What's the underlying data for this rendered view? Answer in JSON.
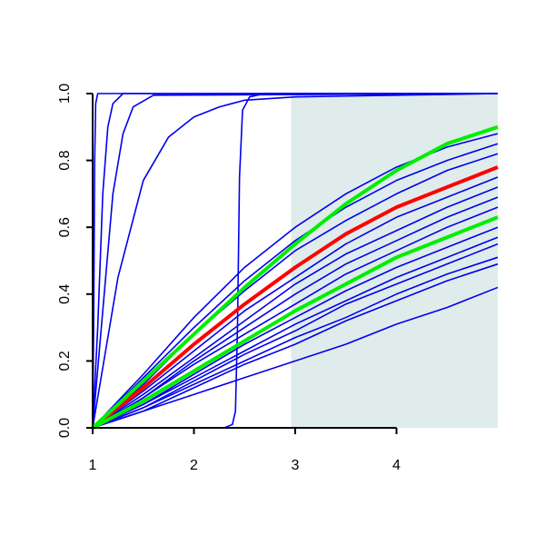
{
  "chart_data": {
    "type": "line",
    "x": [
      1,
      1.5,
      2,
      2.5,
      3,
      3.5,
      4,
      4.5,
      5
    ],
    "xlim": [
      1,
      5
    ],
    "ylim": [
      0,
      1
    ],
    "xticks": [
      1,
      2,
      3,
      4
    ],
    "yticks": [
      {
        "value": 0,
        "label": "0.0"
      },
      {
        "value": 0.2,
        "label": "0.2"
      },
      {
        "value": 0.4,
        "label": "0.4"
      },
      {
        "value": 0.6,
        "label": "0.6"
      },
      {
        "value": 0.8,
        "label": "0.8"
      },
      {
        "value": 1,
        "label": "1.0"
      }
    ],
    "shade_x": [
      2.96,
      5
    ],
    "shade_color": "#dfeceb",
    "series": [
      {
        "color": "#0000ee",
        "x": [
          1,
          1.01,
          1.02,
          1.03,
          1.05,
          5
        ],
        "values": [
          0,
          0.3,
          0.8,
          0.97,
          1,
          1
        ]
      },
      {
        "color": "#0000ee",
        "x": [
          1,
          1.05,
          1.1,
          1.15,
          1.2,
          1.3,
          5
        ],
        "values": [
          0,
          0.3,
          0.7,
          0.9,
          0.97,
          1,
          1
        ]
      },
      {
        "color": "#0000ee",
        "x": [
          1,
          1.1,
          1.2,
          1.3,
          1.4,
          1.6,
          5
        ],
        "values": [
          0,
          0.35,
          0.7,
          0.88,
          0.96,
          0.995,
          1
        ]
      },
      {
        "color": "#0000ee",
        "x": [
          1,
          1.25,
          1.5,
          1.75,
          2,
          2.25,
          2.5,
          3,
          5
        ],
        "values": [
          0,
          0.45,
          0.74,
          0.87,
          0.93,
          0.96,
          0.98,
          0.99,
          1
        ]
      },
      {
        "color": "#0000ee",
        "x": [
          1,
          2.3,
          2.38,
          2.41,
          2.43,
          2.45,
          2.48,
          2.55,
          2.7,
          5
        ],
        "values": [
          0,
          0,
          0.01,
          0.05,
          0.3,
          0.75,
          0.95,
          0.99,
          1,
          1
        ]
      },
      {
        "color": "#0000ee",
        "values": [
          0,
          0.16,
          0.33,
          0.48,
          0.6,
          0.7,
          0.78,
          0.84,
          0.88
        ]
      },
      {
        "color": "#0000ee",
        "values": [
          0,
          0.15,
          0.3,
          0.44,
          0.56,
          0.66,
          0.74,
          0.8,
          0.85
        ]
      },
      {
        "color": "#0000ee",
        "values": [
          0,
          0.13,
          0.28,
          0.41,
          0.53,
          0.62,
          0.7,
          0.77,
          0.82
        ]
      },
      {
        "color": "#0000ee",
        "values": [
          0,
          0.11,
          0.23,
          0.35,
          0.45,
          0.55,
          0.63,
          0.69,
          0.75
        ]
      },
      {
        "color": "#0000ee",
        "values": [
          0,
          0.1,
          0.21,
          0.32,
          0.43,
          0.52,
          0.59,
          0.66,
          0.72
        ]
      },
      {
        "color": "#0000ee",
        "values": [
          0,
          0.09,
          0.2,
          0.3,
          0.4,
          0.49,
          0.56,
          0.63,
          0.69
        ]
      },
      {
        "color": "#0000ee",
        "values": [
          0,
          0.09,
          0.19,
          0.28,
          0.37,
          0.46,
          0.53,
          0.6,
          0.66
        ]
      },
      {
        "color": "#0000ee",
        "values": [
          0,
          0.07,
          0.16,
          0.25,
          0.33,
          0.41,
          0.48,
          0.54,
          0.6
        ]
      },
      {
        "color": "#0000ee",
        "values": [
          0,
          0.07,
          0.15,
          0.23,
          0.31,
          0.38,
          0.45,
          0.51,
          0.57
        ]
      },
      {
        "color": "#0000ee",
        "values": [
          0,
          0.06,
          0.14,
          0.22,
          0.29,
          0.37,
          0.43,
          0.49,
          0.55
        ]
      },
      {
        "color": "#0000ee",
        "values": [
          0,
          0.06,
          0.13,
          0.2,
          0.27,
          0.33,
          0.4,
          0.46,
          0.51
        ]
      },
      {
        "color": "#0000ee",
        "values": [
          0,
          0.05,
          0.12,
          0.19,
          0.25,
          0.32,
          0.38,
          0.44,
          0.49
        ]
      },
      {
        "color": "#0000ee",
        "values": [
          0,
          0.05,
          0.1,
          0.15,
          0.2,
          0.25,
          0.31,
          0.36,
          0.42
        ]
      },
      {
        "color": "#ff0000",
        "line_width": 4,
        "values": [
          0,
          0.12,
          0.25,
          0.37,
          0.48,
          0.58,
          0.66,
          0.72,
          0.78
        ]
      },
      {
        "color": "#00ee00",
        "line_width": 4,
        "values": [
          0,
          0.08,
          0.17,
          0.26,
          0.35,
          0.43,
          0.51,
          0.57,
          0.63
        ]
      },
      {
        "color": "#00ee00",
        "line_width": 4,
        "values": [
          0,
          0.14,
          0.28,
          0.42,
          0.55,
          0.67,
          0.77,
          0.85,
          0.9
        ]
      }
    ]
  }
}
